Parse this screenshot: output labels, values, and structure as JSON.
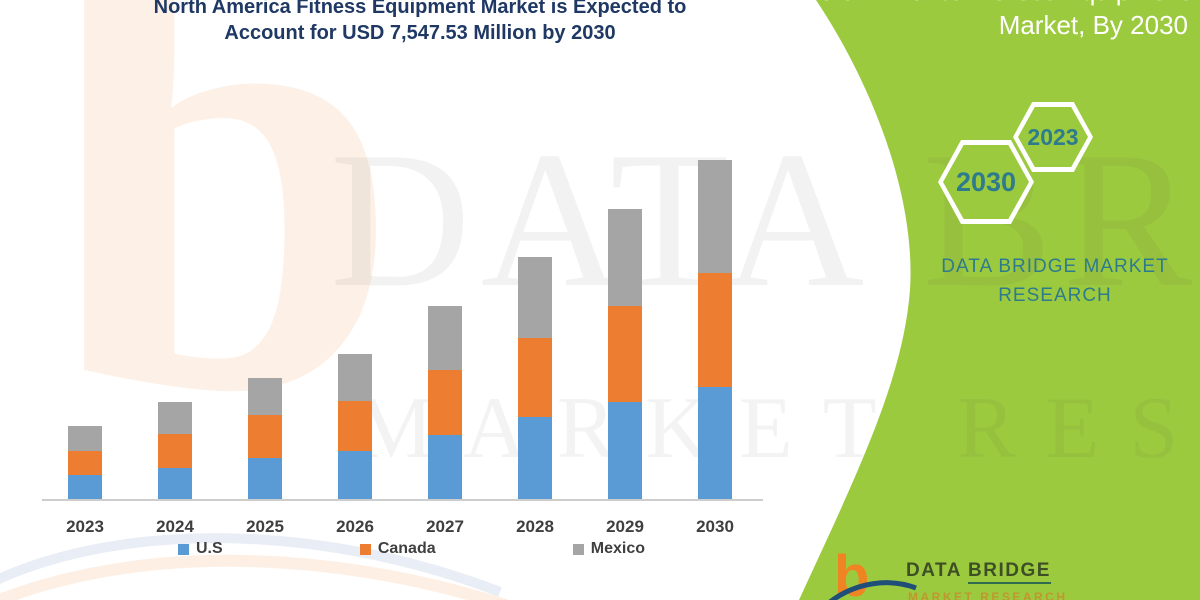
{
  "title": {
    "line1": "North America Fitness Equipment Market is Expected to",
    "line2": "Account for USD 7,547.53 Million by 2030"
  },
  "right_panel": {
    "heading_line1": "North America Fitness Equipment",
    "heading_line2": "Market, By 2030",
    "hexagon_front": "2030",
    "hexagon_back": "2023",
    "brand_caption_line1": "DATA BRIDGE MARKET",
    "brand_caption_line2": "RESEARCH",
    "panel_green": "#9CCA3E",
    "teal": "#2E7B8D"
  },
  "logo": {
    "b_glyph": "b",
    "text_word1": "DATA ",
    "text_word2": "BRIDGE",
    "text_sub": "MARKET RESEARCH"
  },
  "watermark": {
    "b_glyph": "b",
    "line1": "DATA BRIDGE",
    "line2": "MARKET RESEARCH"
  },
  "chart_data": {
    "type": "bar",
    "stacked": true,
    "title": "North America Fitness Equipment Market is Expected to Account for USD 7,547.53 Million by 2030",
    "unit": "USD Million",
    "categories": [
      "2023",
      "2024",
      "2025",
      "2026",
      "2027",
      "2028",
      "2029",
      "2030"
    ],
    "series": [
      {
        "name": "U.S",
        "color": "#5B9BD5",
        "values": [
          545,
          685,
          915,
          1060,
          1430,
          1820,
          2155,
          2505
        ]
      },
      {
        "name": "Canada",
        "color": "#ED7D31",
        "values": [
          535,
          765,
          945,
          1115,
          1450,
          1770,
          2140,
          2528
        ]
      },
      {
        "name": "Mexico",
        "color": "#A5A5A5",
        "values": [
          555,
          705,
          840,
          1045,
          1410,
          1800,
          2160,
          2514.53
        ]
      }
    ],
    "totals": [
      1635,
      2155,
      2700,
      3220,
      4290,
      5390,
      6455,
      7547.53
    ],
    "ylim": [
      0,
      7600
    ],
    "gridlines": false,
    "x_axis_line": true,
    "legend_position": "bottom"
  },
  "legend": [
    {
      "label": "U.S",
      "color": "#5B9BD5"
    },
    {
      "label": "Canada",
      "color": "#ED7D31"
    },
    {
      "label": "Mexico",
      "color": "#A5A5A5"
    }
  ]
}
